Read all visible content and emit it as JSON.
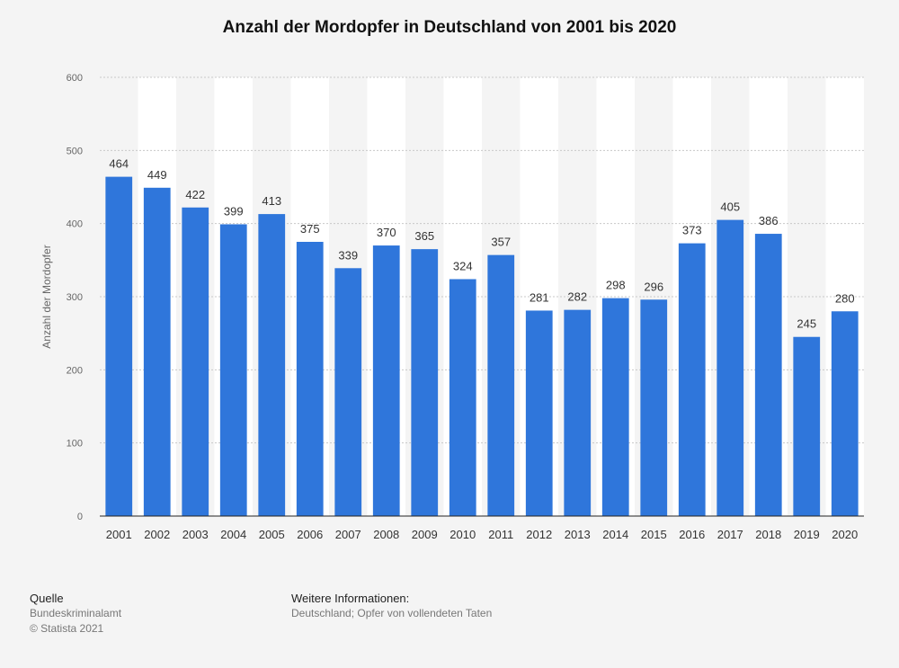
{
  "chart_data": {
    "type": "bar",
    "title": "Anzahl der Mordopfer in Deutschland von 2001 bis 2020",
    "xlabel": "",
    "ylabel": "Anzahl der Mordopfer",
    "ylim": [
      0,
      600
    ],
    "yticks": [
      0,
      100,
      200,
      300,
      400,
      500,
      600
    ],
    "categories": [
      "2001",
      "2002",
      "2003",
      "2004",
      "2005",
      "2006",
      "2007",
      "2008",
      "2009",
      "2010",
      "2011",
      "2012",
      "2013",
      "2014",
      "2015",
      "2016",
      "2017",
      "2018",
      "2019",
      "2020"
    ],
    "values": [
      464,
      449,
      422,
      399,
      413,
      375,
      339,
      370,
      365,
      324,
      357,
      281,
      282,
      298,
      296,
      373,
      405,
      386,
      245,
      280
    ],
    "bar_color": "#2f76db",
    "grid": true,
    "data_labels": true
  },
  "footer": {
    "source_heading": "Quelle",
    "source_name": "Bundeskriminalamt",
    "copyright": "© Statista 2021",
    "info_heading": "Weitere Informationen:",
    "info_text": "Deutschland; Opfer von vollendeten Taten"
  }
}
